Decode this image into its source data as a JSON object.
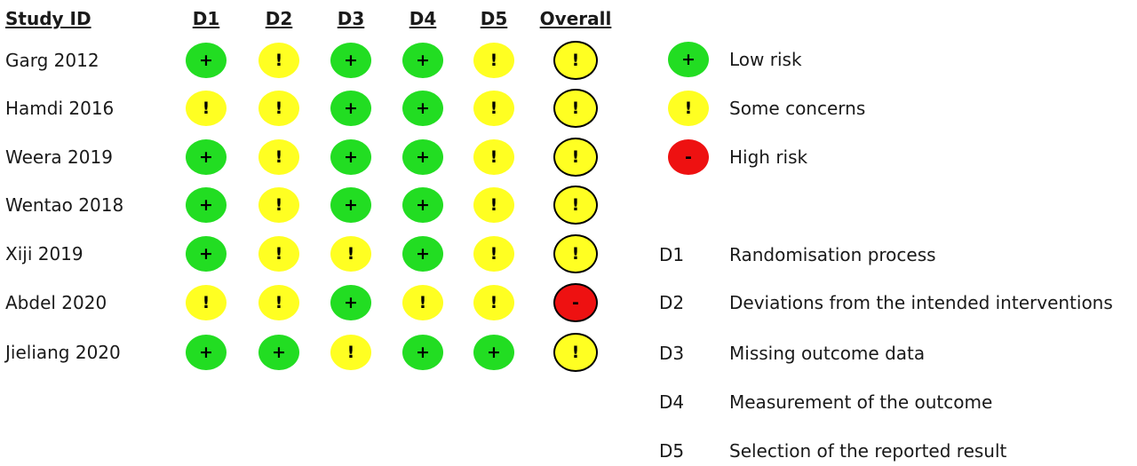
{
  "headers": {
    "study": "Study ID",
    "domains": [
      "D1",
      "D2",
      "D3",
      "D4",
      "D5"
    ],
    "overall": "Overall"
  },
  "colors": {
    "low": "#22dd22",
    "some": "#ffff22",
    "high": "#ee1111"
  },
  "symbols": {
    "low": "+",
    "some": "!",
    "high": "-"
  },
  "studies": [
    {
      "id": "Garg 2012",
      "judgements": [
        "low",
        "some",
        "low",
        "low",
        "some"
      ],
      "overall": "some"
    },
    {
      "id": "Hamdi 2016",
      "judgements": [
        "some",
        "some",
        "low",
        "low",
        "some"
      ],
      "overall": "some"
    },
    {
      "id": "Weera 2019",
      "judgements": [
        "low",
        "some",
        "low",
        "low",
        "some"
      ],
      "overall": "some"
    },
    {
      "id": "Wentao 2018",
      "judgements": [
        "low",
        "some",
        "low",
        "low",
        "some"
      ],
      "overall": "some"
    },
    {
      "id": "Xiji 2019",
      "judgements": [
        "low",
        "some",
        "some",
        "low",
        "some"
      ],
      "overall": "some"
    },
    {
      "id": "Abdel 2020",
      "judgements": [
        "some",
        "some",
        "low",
        "some",
        "some"
      ],
      "overall": "high"
    },
    {
      "id": "Jieliang 2020",
      "judgements": [
        "low",
        "low",
        "some",
        "low",
        "low"
      ],
      "overall": "some"
    }
  ],
  "legend": [
    {
      "level": "low",
      "label": "Low risk"
    },
    {
      "level": "some",
      "label": "Some concerns"
    },
    {
      "level": "high",
      "label": "High risk"
    }
  ],
  "domain_descriptions": [
    {
      "code": "D1",
      "text": "Randomisation process"
    },
    {
      "code": "D2",
      "text": "Deviations from the intended interventions"
    },
    {
      "code": "D3",
      "text": "Missing outcome data"
    },
    {
      "code": "D4",
      "text": "Measurement of the outcome"
    },
    {
      "code": "D5",
      "text": "Selection of the reported result"
    }
  ]
}
